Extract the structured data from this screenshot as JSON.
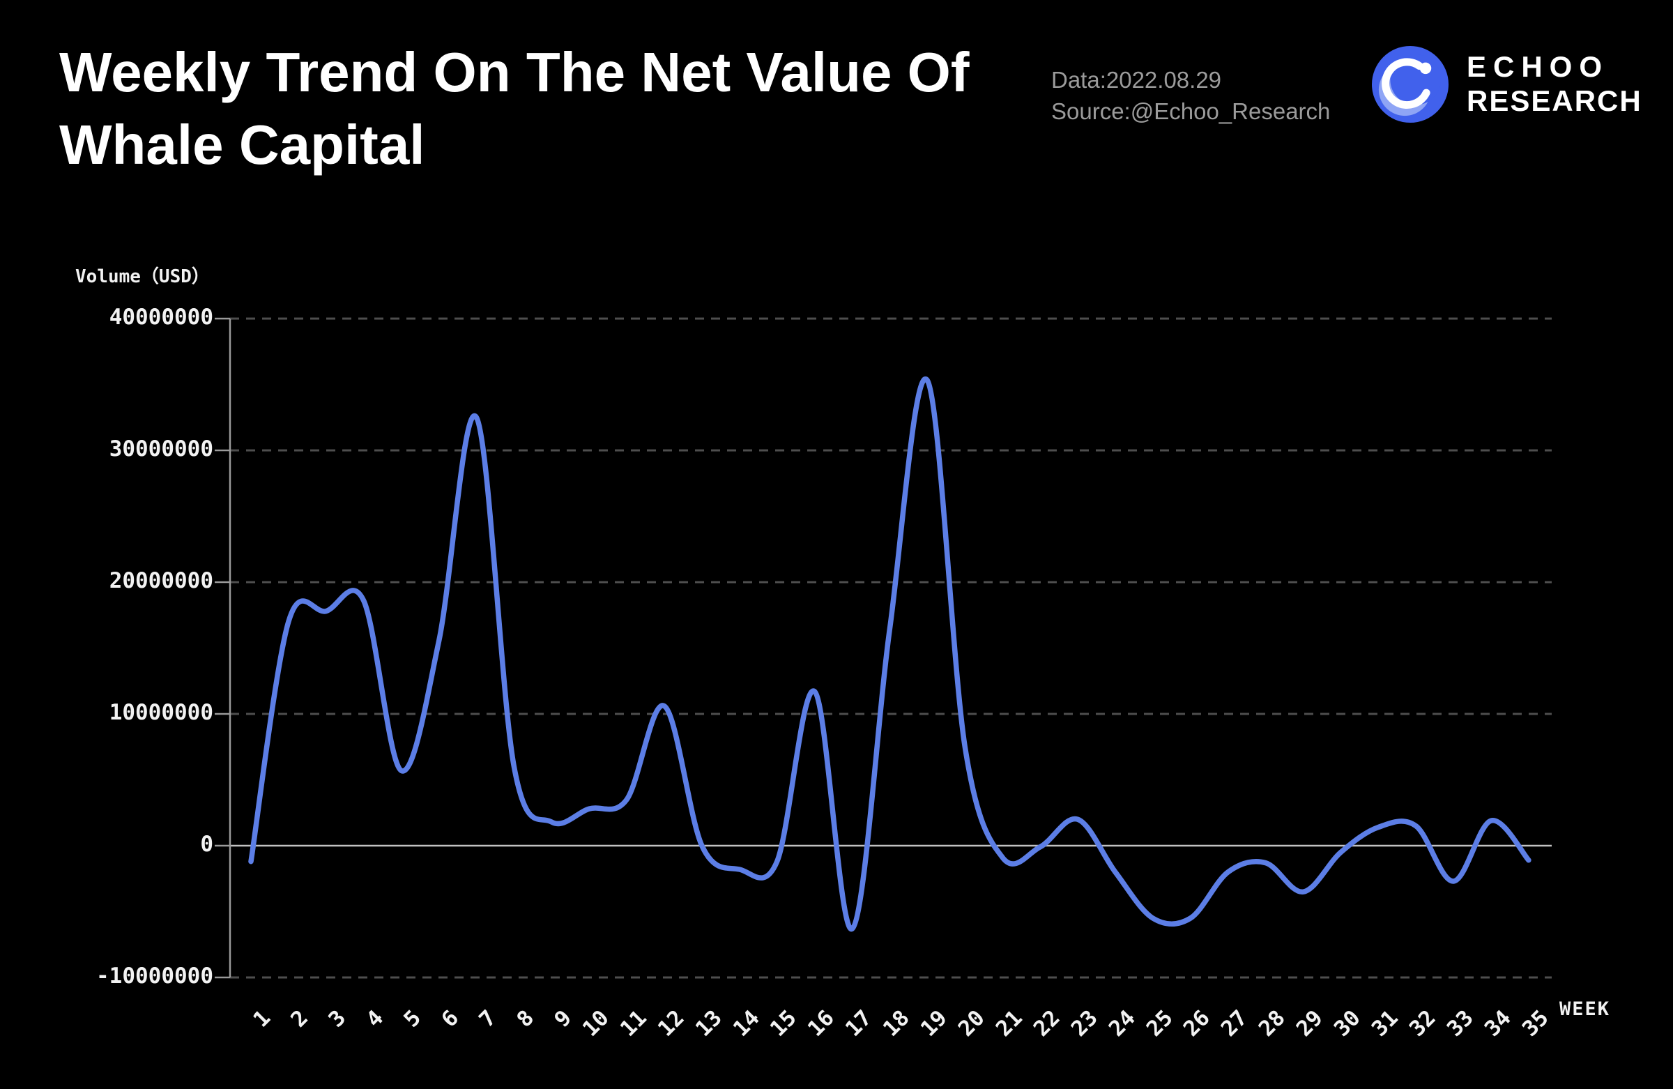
{
  "header": {
    "title_line1": "Weekly Trend On The Net Value Of",
    "title_line2": "Whale Capital",
    "data_label": "Data:2022.08.29",
    "source_label": "Source:@Echoo_Research",
    "logo_line1": "ECHOO",
    "logo_line2": "RESEARCH"
  },
  "colors": {
    "background": "#000000",
    "line": "#5C7EE6",
    "logo_blue": "#4161EC",
    "logo_light_blue": "#8FA5F5",
    "grid": "#4E4E4E",
    "zero_line": "#C2C2C2",
    "axis": "#9A9A9A",
    "tick_text": "#F2F2F2",
    "meta_text": "#9B9B9B"
  },
  "chart_data": {
    "type": "line",
    "title": "Weekly Trend On The Net Value Of Whale Capital",
    "ylabel": "Volume（USD）",
    "xlabel": "WEEK",
    "legend": "none",
    "grid": "horizontal dashed, solid line at zero",
    "ylim": [
      -10000000,
      40000000
    ],
    "categories": [
      "1",
      "2",
      "3",
      "4",
      "5",
      "6",
      "7",
      "8",
      "9",
      "10",
      "11",
      "12",
      "13",
      "14",
      "15",
      "16",
      "17",
      "18",
      "19",
      "20",
      "21",
      "22",
      "23",
      "24",
      "25",
      "26",
      "27",
      "28",
      "29",
      "30",
      "31",
      "32",
      "33",
      "34",
      "35"
    ],
    "series": [
      {
        "name": "Net value of whale capital",
        "color": "#5C7EE6",
        "values": [
          -1200000,
          17000000,
          17800000,
          18600000,
          5700000,
          15500000,
          32500000,
          6000000,
          1800000,
          2800000,
          3500000,
          10600000,
          0,
          -1800000,
          -1200000,
          11700000,
          -6300000,
          16500000,
          35300000,
          7500000,
          -900000,
          -100000,
          2000000,
          -2000000,
          -5500000,
          -5500000,
          -2000000,
          -1300000,
          -3500000,
          -500000,
          1400000,
          1500000,
          -2700000,
          1900000,
          -1100000
        ]
      }
    ],
    "yticks": [
      {
        "label": "40000000",
        "value": 40000000
      },
      {
        "label": "30000000",
        "value": 30000000
      },
      {
        "label": "20000000",
        "value": 20000000
      },
      {
        "label": "10000000",
        "value": 10000000
      },
      {
        "label": "0",
        "value": 0
      },
      {
        "label": "-10000000",
        "value": -10000000
      }
    ]
  }
}
